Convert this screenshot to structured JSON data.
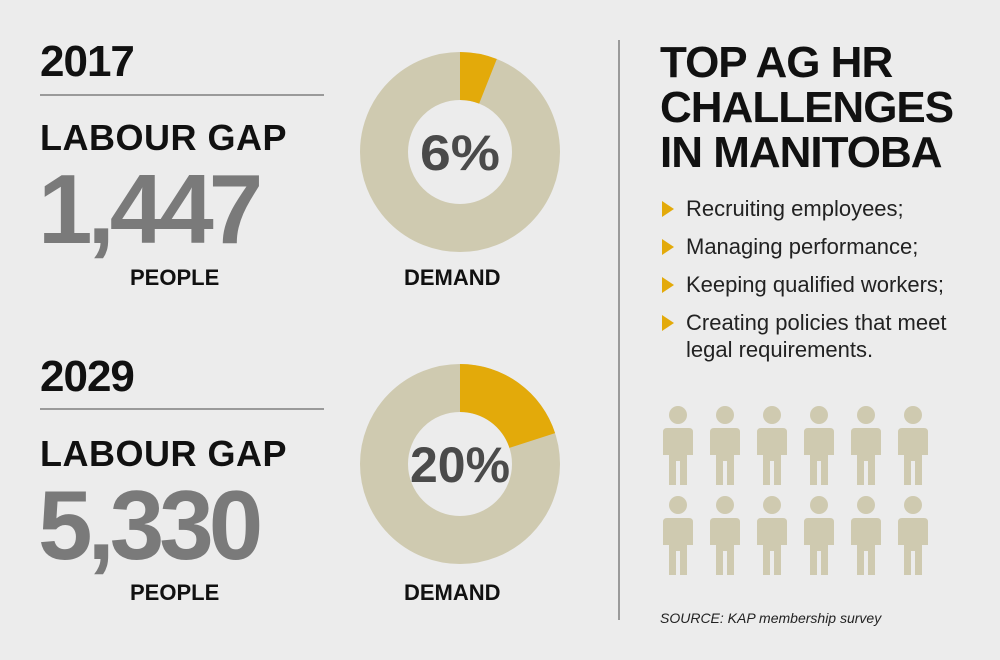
{
  "colors": {
    "accent": "#e3aa0a",
    "ring": "#cfcab0",
    "figure": "#cfcab0",
    "gap_value": "#7a7a7a"
  },
  "blocks": [
    {
      "year": "2017",
      "gap_label": "LABOUR GAP",
      "gap_value": "1,447",
      "unit": "PEOPLE",
      "demand_pct": "6%",
      "demand_label": "DEMAND"
    },
    {
      "year": "2029",
      "gap_label": "LABOUR GAP",
      "gap_value": "5,330",
      "unit": "PEOPLE",
      "demand_pct": "20%",
      "demand_label": "DEMAND"
    }
  ],
  "chart_data": [
    {
      "type": "pie",
      "categories": [
        "DEMAND",
        ""
      ],
      "values": [
        6,
        94
      ]
    },
    {
      "type": "pie",
      "categories": [
        "DEMAND",
        ""
      ],
      "values": [
        20,
        80
      ]
    }
  ],
  "sidebar": {
    "heading_lines": [
      "TOP AG HR",
      "CHALLENGES",
      "IN MANITOBA"
    ],
    "items": [
      {
        "text": "Recruiting employees;"
      },
      {
        "text": "Managing performance;"
      },
      {
        "text": "Keeping qualified workers;"
      },
      {
        "text": "Creating policies that meet legal requirements."
      }
    ],
    "people_rows": 2,
    "people_per_row": 6,
    "people_icon": "person-icon",
    "bullet_icon": "arrow-right-icon",
    "source": "SOURCE: KAP membership survey"
  }
}
